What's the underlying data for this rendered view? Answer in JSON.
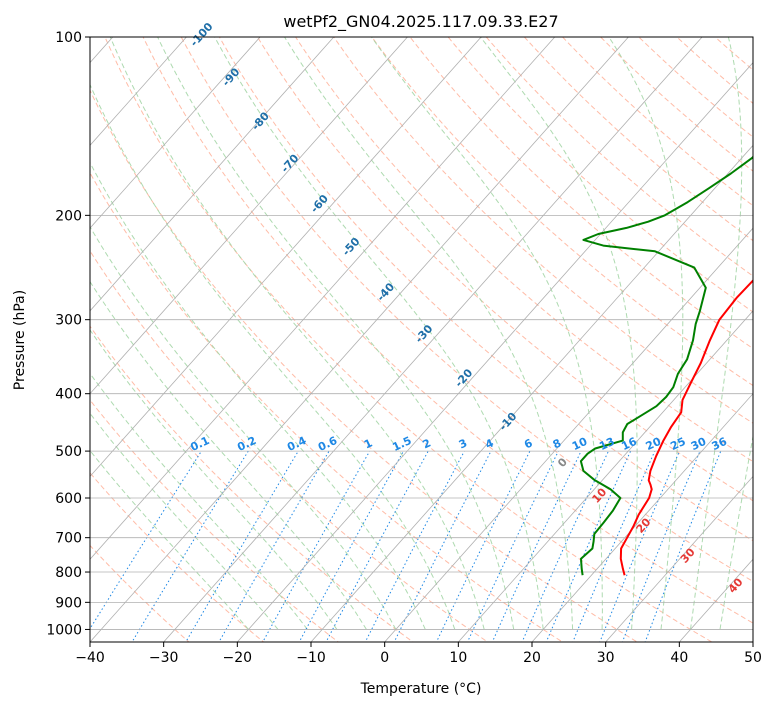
{
  "chart_data": {
    "type": "line",
    "title": "wetPf2_GN04.2025.117.09.33.E27",
    "xlabel": "Temperature (°C)",
    "ylabel": "Pressure (hPa)",
    "xlim": [
      -40,
      50
    ],
    "ylim": [
      1050,
      100
    ],
    "y_scale": "log",
    "x_ticks": [
      "−40",
      "−30",
      "−20",
      "−10",
      "0",
      "10",
      "20",
      "30",
      "40",
      "50"
    ],
    "y_ticks": [
      "100",
      "200",
      "300",
      "400",
      "500",
      "600",
      "700",
      "800",
      "900",
      "1000"
    ],
    "grid": true,
    "series": [
      {
        "color": "#ff0000",
        "points": [
          [
            24.5,
            810
          ],
          [
            23.5,
            790
          ],
          [
            22.0,
            760
          ],
          [
            20.8,
            730
          ],
          [
            20.3,
            700
          ],
          [
            19.8,
            670
          ],
          [
            19.1,
            640
          ],
          [
            18.5,
            600
          ],
          [
            17.8,
            580
          ],
          [
            17.1,
            570
          ],
          [
            16.3,
            560
          ],
          [
            15.4,
            540
          ],
          [
            14.4,
            510
          ],
          [
            13.5,
            480
          ],
          [
            12.9,
            455
          ],
          [
            12.5,
            430
          ],
          [
            11.2,
            410
          ],
          [
            10.3,
            385
          ],
          [
            9.2,
            355
          ],
          [
            7.7,
            325
          ],
          [
            6.5,
            300
          ],
          [
            6.2,
            275
          ],
          [
            6.4,
            250
          ],
          [
            5.6,
            225
          ],
          [
            4.2,
            200
          ],
          [
            2.4,
            180
          ],
          [
            1.2,
            165
          ],
          [
            1.4,
            150
          ],
          [
            4.0,
            135
          ],
          [
            6.3,
            123
          ],
          [
            7.6,
            115
          ],
          [
            8.6,
            107
          ],
          [
            9.2,
            100
          ]
        ]
      },
      {
        "color": "#008000",
        "points": [
          [
            18.8,
            810
          ],
          [
            17.9,
            790
          ],
          [
            16.6,
            760
          ],
          [
            16.9,
            730
          ],
          [
            16.2,
            710
          ],
          [
            15.4,
            690
          ],
          [
            15.3,
            660
          ],
          [
            15.1,
            630
          ],
          [
            14.6,
            600
          ],
          [
            12.2,
            580
          ],
          [
            9.0,
            560
          ],
          [
            6.3,
            540
          ],
          [
            4.8,
            520
          ],
          [
            4.8,
            505
          ],
          [
            5.2,
            495
          ],
          [
            8.0,
            480
          ],
          [
            7.0,
            465
          ],
          [
            6.6,
            450
          ],
          [
            7.2,
            440
          ],
          [
            8.4,
            420
          ],
          [
            8.6,
            405
          ],
          [
            8.4,
            390
          ],
          [
            7.4,
            370
          ],
          [
            6.9,
            350
          ],
          [
            5.4,
            325
          ],
          [
            3.8,
            305
          ],
          [
            2.8,
            290
          ],
          [
            0.8,
            265
          ],
          [
            -3.2,
            245
          ],
          [
            -10.5,
            230
          ],
          [
            -18.2,
            225
          ],
          [
            -21.6,
            220
          ],
          [
            -20.3,
            215
          ],
          [
            -17.2,
            210
          ],
          [
            -15.0,
            205
          ],
          [
            -13.5,
            200
          ],
          [
            -12.0,
            190
          ],
          [
            -10.8,
            180
          ],
          [
            -9.6,
            170
          ],
          [
            -8.6,
            160
          ],
          [
            -8.4,
            150
          ],
          [
            -8.8,
            140
          ],
          [
            -8.4,
            130
          ],
          [
            -6.8,
            120
          ],
          [
            -5.0,
            110
          ],
          [
            -4.6,
            104
          ],
          [
            -4.8,
            100
          ]
        ]
      }
    ],
    "mixing_ratio_labels": [
      "0.1",
      "0.2",
      "0.4",
      "0.6",
      "1",
      "1.5",
      "2",
      "3",
      "4",
      "6",
      "8",
      "10",
      "13",
      "16",
      "20",
      "25",
      "30",
      "36"
    ],
    "dry_adiabat_labels": [
      "-100",
      "-90",
      "-80",
      "-70",
      "-60",
      "-50",
      "-40",
      "-30",
      "-20",
      "-10",
      "0",
      "10",
      "20",
      "30",
      "40"
    ]
  }
}
